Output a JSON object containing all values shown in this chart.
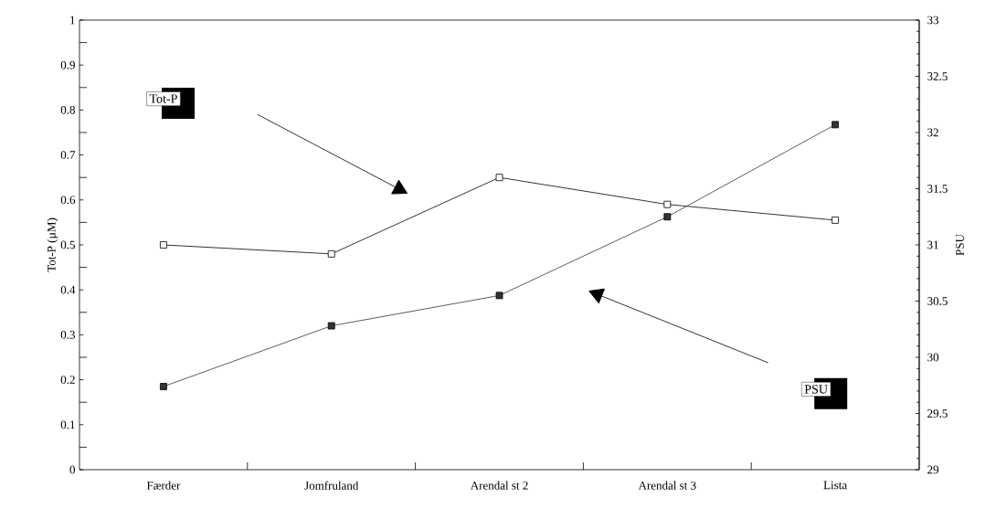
{
  "chart_data": {
    "type": "line",
    "categories": [
      "Færder",
      "Jomfruland",
      "Arendal st 2",
      "Arendal st 3",
      "Lista"
    ],
    "ylabel": "Tot-P (µM)",
    "y2label": "PSU",
    "ylim": [
      0,
      1
    ],
    "yticks": [
      0,
      0.1,
      0.2,
      0.3,
      0.4,
      0.5,
      0.6,
      0.7,
      0.8,
      0.9,
      1
    ],
    "y2lim": [
      29,
      33
    ],
    "y2ticks": [
      29,
      29.5,
      30,
      30.5,
      31,
      31.5,
      32,
      32.5,
      33
    ],
    "marker": "square",
    "line_style": "solid",
    "grid": false,
    "series": [
      {
        "name": "Tot-P",
        "color": "#000000",
        "values": [
          0.5,
          0.48,
          0.65,
          0.59,
          0.555
        ]
      },
      {
        "name": "PSU",
        "color": "#333333",
        "axis": "y2",
        "values": [
          29.74,
          30.28,
          30.55,
          31.25,
          32.07
        ]
      }
    ]
  }
}
